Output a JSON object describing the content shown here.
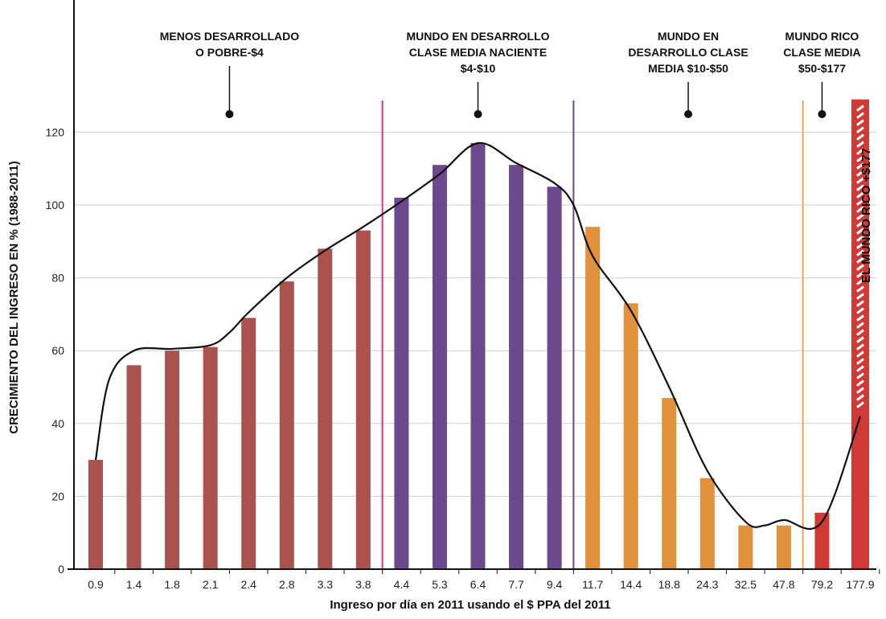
{
  "chart_data": {
    "type": "bar",
    "xlabel": "Ingreso por día en 2011 usando el $ PPA del 2011",
    "ylabel": "CRECIMIENTO DEL INGRESO EN % (1988-2011)",
    "ylim": [
      0,
      130
    ],
    "yticks": [
      0,
      20,
      40,
      60,
      80,
      100,
      120
    ],
    "grid": true,
    "categories": [
      "0.9",
      "1.4",
      "1.8",
      "2.1",
      "2.4",
      "2.8",
      "3.3",
      "3.8",
      "4.4",
      "5.3",
      "6.4",
      "7.7",
      "9.4",
      "11.7",
      "14.4",
      "18.8",
      "24.3",
      "32.5",
      "47.8",
      "79.2",
      "177.9"
    ],
    "values": [
      30,
      56,
      60,
      61,
      69,
      79,
      88,
      93,
      102,
      111,
      117,
      111,
      105,
      94,
      73,
      47,
      25,
      12,
      12,
      15.5,
      129
    ],
    "bar_groups": [
      0,
      0,
      0,
      0,
      0,
      0,
      0,
      0,
      1,
      1,
      1,
      1,
      1,
      2,
      2,
      2,
      2,
      2,
      2,
      3,
      3
    ],
    "highlight_bar": 20,
    "curve": {
      "name": "",
      "x_index": [
        0,
        0.35,
        1,
        2,
        3,
        3.5,
        4,
        5,
        6,
        7,
        8,
        9,
        10,
        11,
        12,
        12.5,
        13,
        14,
        15,
        16,
        17,
        17.5,
        18,
        19,
        20
      ],
      "values": [
        30,
        52,
        60,
        60.5,
        61.5,
        65,
        70.5,
        80,
        87.5,
        94,
        101,
        108.5,
        117,
        111.5,
        106,
        100,
        86,
        71,
        50,
        27,
        13,
        12,
        13.5,
        13,
        42
      ]
    },
    "group_colors": [
      "#a9524e",
      "#6a4a8c",
      "#e0913c",
      "#cf3a36"
    ],
    "curve_color": "#111111",
    "dividers": [
      {
        "between": 7.5,
        "color": "#d6338f"
      },
      {
        "between": 12.5,
        "color": "#6a4a8c"
      },
      {
        "between": 18.5,
        "color": "#f2a257"
      }
    ],
    "region_labels": [
      {
        "lines": [
          "MENOS DESARROLLADO",
          "O POBRE-$4"
        ],
        "x_index": 3.5
      },
      {
        "lines": [
          "MUNDO EN DESARROLLO",
          "CLASE MEDIA NACIENTE",
          "$4-$10"
        ],
        "x_index": 10
      },
      {
        "lines": [
          "MUNDO EN",
          "DESARROLLO CLASE",
          "MEDIA $10-$50"
        ],
        "x_index": 15.5
      },
      {
        "lines": [
          "MUNDO RICO",
          "CLASE MEDIA",
          "$50-$177"
        ],
        "x_index": 19
      }
    ],
    "annotations": [
      "EL MUNDO RICO +$177"
    ]
  }
}
